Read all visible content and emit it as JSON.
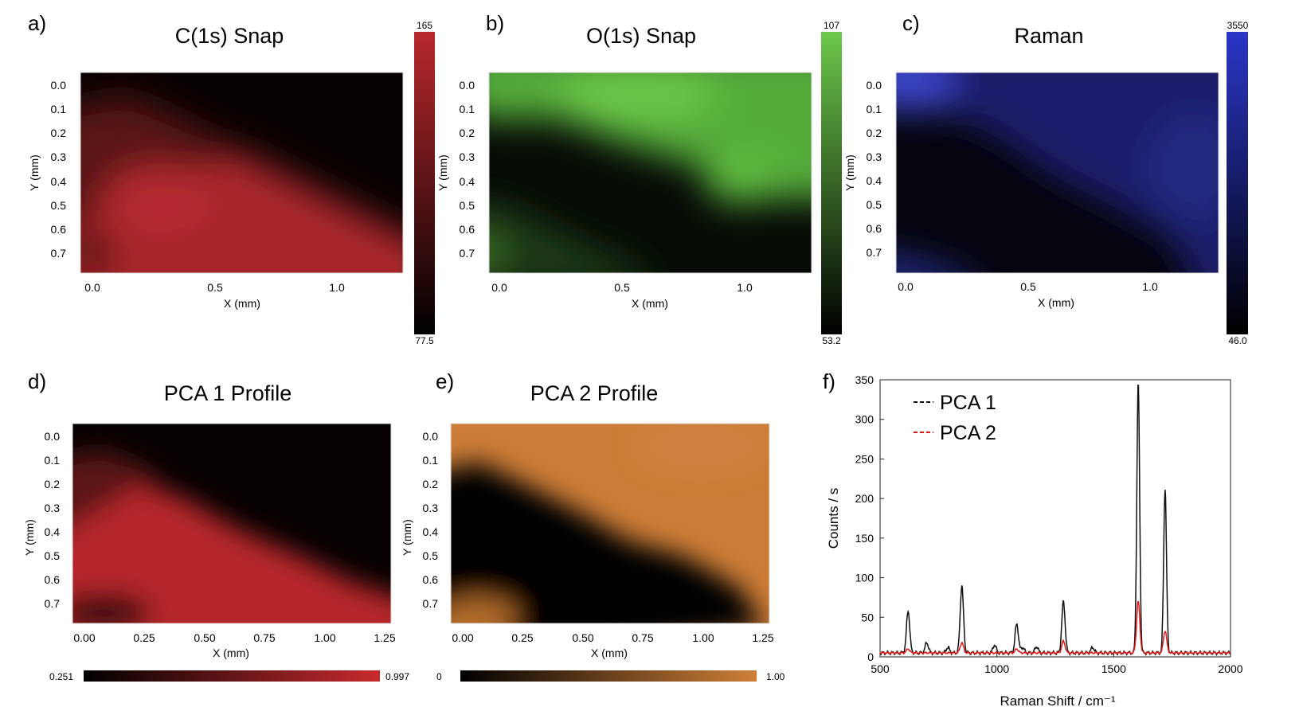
{
  "colors": {
    "c1s": "#b8282c",
    "o1s": "#6cc84a",
    "raman": "#2a36c8",
    "pca1": "#c82a2e",
    "pca2": "#cf8038",
    "spec_pca1": "#111111",
    "spec_pca2": "#e01818"
  },
  "panels": {
    "a": {
      "label": "a)",
      "title": "C(1s) Snap",
      "xlabel": "X (mm)",
      "ylabel": "Y (mm)",
      "xticks": [
        "0.0",
        "0.5",
        "1.0"
      ],
      "yticks": [
        "0.0",
        "0.1",
        "0.2",
        "0.3",
        "0.4",
        "0.5",
        "0.6",
        "0.7"
      ],
      "cbar_max": "165",
      "cbar_min": "77.5"
    },
    "b": {
      "label": "b)",
      "title": "O(1s) Snap",
      "xlabel": "X (mm)",
      "ylabel": "Y (mm)",
      "xticks": [
        "0.0",
        "0.5",
        "1.0"
      ],
      "yticks": [
        "0.0",
        "0.1",
        "0.2",
        "0.3",
        "0.4",
        "0.5",
        "0.6",
        "0.7"
      ],
      "cbar_max": "107",
      "cbar_min": "53.2"
    },
    "c": {
      "label": "c)",
      "title": "Raman",
      "xlabel": "X (mm)",
      "ylabel": "Y (mm)",
      "xticks": [
        "0.0",
        "0.5",
        "1.0"
      ],
      "yticks": [
        "0.0",
        "0.1",
        "0.2",
        "0.3",
        "0.4",
        "0.5",
        "0.6",
        "0.7"
      ],
      "cbar_max": "3550",
      "cbar_min": "46.0"
    },
    "d": {
      "label": "d)",
      "title": "PCA 1 Profile",
      "xlabel": "X (mm)",
      "ylabel": "Y (mm)",
      "xticks": [
        "0.00",
        "0.25",
        "0.50",
        "0.75",
        "1.00",
        "1.25"
      ],
      "yticks": [
        "0.0",
        "0.1",
        "0.2",
        "0.3",
        "0.4",
        "0.5",
        "0.6",
        "0.7"
      ],
      "cbar_min": "0.251",
      "cbar_max": "0.997"
    },
    "e": {
      "label": "e)",
      "title": "PCA 2 Profile",
      "xlabel": "X (mm)",
      "ylabel": "Y (mm)",
      "xticks": [
        "0.00",
        "0.25",
        "0.50",
        "0.75",
        "1.00",
        "1.25"
      ],
      "yticks": [
        "0.0",
        "0.1",
        "0.2",
        "0.3",
        "0.4",
        "0.5",
        "0.6",
        "0.7"
      ],
      "cbar_min": "0",
      "cbar_max": "1.00"
    },
    "f": {
      "label": "f)"
    }
  },
  "chart_data": {
    "type": "line",
    "title": "",
    "xlabel": "Raman Shift / cm⁻¹",
    "ylabel": "Counts / s",
    "xlim": [
      500,
      2000
    ],
    "ylim": [
      0,
      350
    ],
    "xticks": [
      500,
      1000,
      1500,
      2000
    ],
    "yticks": [
      0,
      50,
      100,
      150,
      200,
      250,
      300,
      350
    ],
    "legend_position": "top-left",
    "baseline": 5,
    "series": [
      {
        "name": "PCA 1",
        "color": "#111111",
        "linestyle": "dashed-legend",
        "peaks": [
          [
            620,
            58
          ],
          [
            700,
            18
          ],
          [
            790,
            12
          ],
          [
            850,
            90
          ],
          [
            990,
            15
          ],
          [
            1085,
            42
          ],
          [
            1110,
            12
          ],
          [
            1170,
            13
          ],
          [
            1285,
            70
          ],
          [
            1410,
            12
          ],
          [
            1605,
            347
          ],
          [
            1720,
            213
          ]
        ]
      },
      {
        "name": "PCA 2",
        "color": "#e01818",
        "linestyle": "dashed-legend",
        "peaks": [
          [
            620,
            10
          ],
          [
            850,
            18
          ],
          [
            1085,
            10
          ],
          [
            1285,
            20
          ],
          [
            1605,
            70
          ],
          [
            1720,
            33
          ]
        ]
      }
    ]
  }
}
